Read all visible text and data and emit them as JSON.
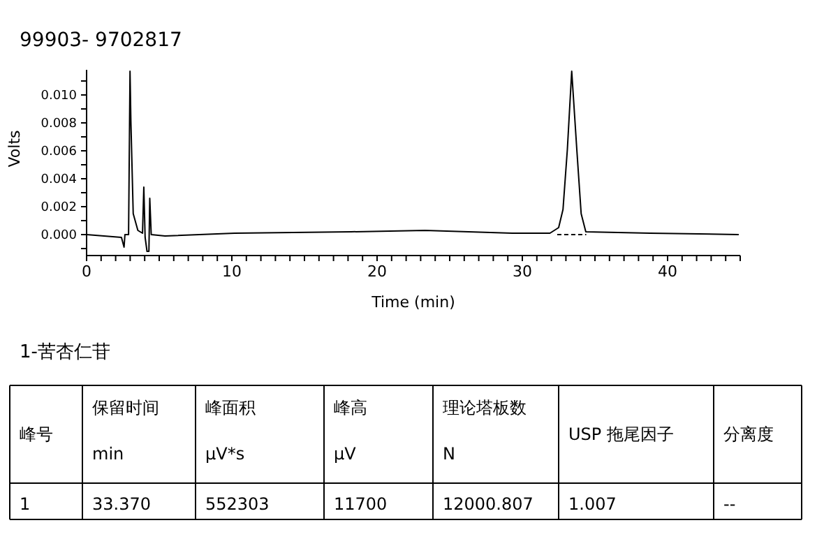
{
  "chart_data": [
    {
      "type": "line",
      "title": "99903- 9702817",
      "xlabel": "Time (min)",
      "ylabel": "Volts",
      "xlim": [
        0,
        45
      ],
      "ylim": [
        -0.0015,
        0.0118
      ],
      "xticks": [
        0,
        {
          "value": 1,
          "label": null
        },
        {
          "value": 2,
          "label": null
        },
        {
          "value": 3,
          "label": null
        },
        {
          "value": 4,
          "label": null
        },
        {
          "value": 5,
          "label": null
        },
        {
          "value": 6,
          "label": null
        },
        {
          "value": 7,
          "label": null
        },
        {
          "value": 8,
          "label": null
        },
        {
          "value": 9,
          "label": null
        },
        10,
        {
          "value": 11,
          "label": null
        },
        {
          "value": 12,
          "label": null
        },
        {
          "value": 13,
          "label": null
        },
        {
          "value": 14,
          "label": null
        },
        {
          "value": 15,
          "label": null
        },
        {
          "value": 16,
          "label": null
        },
        {
          "value": 17,
          "label": null
        },
        {
          "value": 18,
          "label": null
        },
        {
          "value": 19,
          "label": null
        },
        20,
        {
          "value": 21,
          "label": null
        },
        {
          "value": 22,
          "label": null
        },
        {
          "value": 23,
          "label": null
        },
        {
          "value": 24,
          "label": null
        },
        {
          "value": 25,
          "label": null
        },
        {
          "value": 26,
          "label": null
        },
        {
          "value": 27,
          "label": null
        },
        {
          "value": 28,
          "label": null
        },
        {
          "value": 29,
          "label": null
        },
        30,
        {
          "value": 31,
          "label": null
        },
        {
          "value": 32,
          "label": null
        },
        {
          "value": 33,
          "label": null
        },
        {
          "value": 34,
          "label": null
        },
        {
          "value": 35,
          "label": null
        },
        {
          "value": 36,
          "label": null
        },
        {
          "value": 37,
          "label": null
        },
        {
          "value": 38,
          "label": null
        },
        {
          "value": 39,
          "label": null
        },
        40,
        {
          "value": 41,
          "label": null
        },
        {
          "value": 42,
          "label": null
        },
        {
          "value": 43,
          "label": null
        },
        {
          "value": 44,
          "label": null
        },
        {
          "value": 45,
          "label": null
        }
      ],
      "yticks": [
        {
          "value": -0.001,
          "label": null
        },
        {
          "value": 0,
          "label": "0.000"
        },
        {
          "value": 0.001,
          "label": null
        },
        {
          "value": 0.002,
          "label": "0.002"
        },
        {
          "value": 0.003,
          "label": null
        },
        {
          "value": 0.004,
          "label": "0.004"
        },
        {
          "value": 0.005,
          "label": null
        },
        {
          "value": 0.006,
          "label": "0.006"
        },
        {
          "value": 0.007,
          "label": null
        },
        {
          "value": 0.008,
          "label": "0.008"
        },
        {
          "value": 0.009,
          "label": null
        },
        {
          "value": 0.01,
          "label": "0.010"
        },
        {
          "value": 0.011,
          "label": null
        }
      ],
      "grid": false,
      "marker": "none",
      "series": [
        {
          "color": "#000000",
          "line_style": "solid",
          "x": [
            0,
            2.4,
            2.58,
            2.64,
            2.89,
            2.99,
            3.05,
            3.21,
            3.53,
            3.85,
            3.94,
            4.03,
            4.16,
            4.29,
            4.35,
            4.45,
            5.4,
            10.2,
            18.2,
            23.3,
            29.3,
            31.9,
            32.5,
            32.8,
            33.1,
            33.4,
            33.75,
            34.05,
            34.37,
            38.8,
            44.9
          ],
          "values": [
            0,
            -0.0002,
            -0.0009,
            0,
            0,
            0.0117,
            0.0081,
            0.0015,
            0.0003,
            0.0001,
            0.0034,
            -0.0002,
            -0.0012,
            -0.0012,
            0.0026,
            0,
            -0.0001,
            0.0001,
            0.0002,
            0.0003,
            0.0001,
            0.0001,
            0.0005,
            0.0018,
            0.0061,
            0.0117,
            0.0061,
            0.0015,
            0.0002,
            0.0001,
            0
          ]
        },
        {
          "color": "#000000",
          "line_style": "dashed",
          "x": [
            32.4,
            34.4
          ],
          "values": [
            0,
            0
          ]
        }
      ]
    },
    {
      "type": "other",
      "title": "1-苦杏仁苷",
      "annotations": [
        "峰号",
        "保留时间\nmin",
        "峰面积\nμV*s",
        "峰高\nμV",
        "理论塔板数\nN",
        "USP 拖尾因子",
        "分离度",
        "1",
        "33.370",
        "552303",
        "11700",
        "12000.807",
        "1.007",
        "--"
      ]
    }
  ]
}
